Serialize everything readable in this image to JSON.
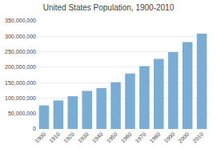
{
  "chart_data": {
    "type": "bar",
    "title": "United States Population, 1900-2010",
    "categories": [
      "1900",
      "1910",
      "1920",
      "1930",
      "1940",
      "1950",
      "1960",
      "1970",
      "1980",
      "1990",
      "2000",
      "2010"
    ],
    "values": [
      76212168,
      92228496,
      106021537,
      123202624,
      132164569,
      151325798,
      179323175,
      203211926,
      226545805,
      248709873,
      281421906,
      308745538
    ],
    "color": "#7aadd4",
    "ylim": [
      0,
      350000000
    ],
    "yticks": [
      0,
      {
        "value": 50000000,
        "label": "50,000,000"
      },
      {
        "value": 100000000,
        "label": "100,000,000"
      },
      {
        "value": 150000000,
        "label": "150,000,000"
      },
      {
        "value": 200000000,
        "label": "200,000,000"
      },
      {
        "value": 250000000,
        "label": "250,000,000"
      },
      {
        "value": 300000000,
        "label": "300,000,000"
      },
      {
        "value": 350000000,
        "label": "350,000,000"
      }
    ],
    "grid": true
  }
}
